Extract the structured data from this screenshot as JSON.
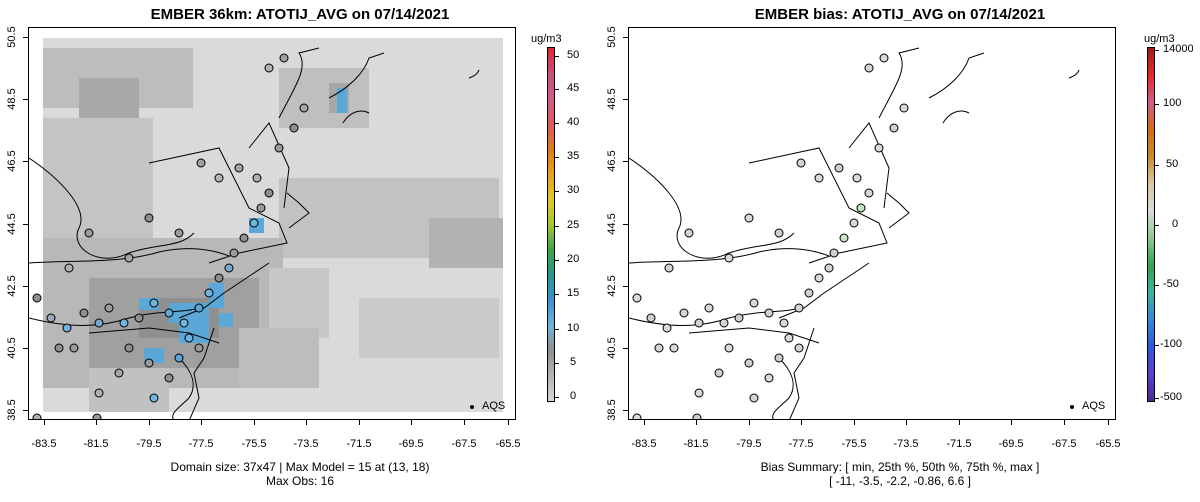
{
  "left": {
    "title": "EMBER 36km: ATOTIJ_AVG on 07/14/2021",
    "footer_line1": "Domain size: 37x47 | Max Model = 15 at (13, 18)",
    "footer_line2": "Max Obs: 16",
    "unit": "ug/m3",
    "colorbar_ticks": [
      "50",
      "45",
      "40",
      "35",
      "30",
      "25",
      "20",
      "15",
      "10",
      "5",
      "0"
    ],
    "legend": "AQS"
  },
  "right": {
    "title": "EMBER bias: ATOTIJ_AVG on 07/14/2021",
    "footer_line1": "Bias Summary: [ min, 25th %, 50th %, 75th %, max ]",
    "footer_line2": "[ -11,   -3.5,   -2.2,   -0.86,   6.6 ]",
    "unit": "ug/m3",
    "colorbar_ticks": [
      "14000",
      "100",
      "50",
      "0",
      "-50",
      "-100",
      "-500"
    ],
    "legend": "AQS"
  },
  "y_ticks": [
    "50.5",
    "48.5",
    "46.5",
    "44.5",
    "42.5",
    "40.5",
    "38.5"
  ],
  "x_ticks": [
    "-83.5",
    "-81.5",
    "-79.5",
    "-77.5",
    "-75.5",
    "-73.5",
    "-71.5",
    "-69.5",
    "-67.5",
    "-65.5"
  ],
  "colors": {
    "left_scale": [
      "#d7d7d7",
      "#b3b3b3",
      "#8f8f8f",
      "#6fb4dc",
      "#3b90d0",
      "#219a8c",
      "#3ea54a",
      "#a4c634",
      "#e3c82a",
      "#e7a023",
      "#df7a1f",
      "#d95b5b",
      "#d45a8c",
      "#c64f7a",
      "#e32431"
    ],
    "right_scale": [
      "#4a2a8f",
      "#5b3fd1",
      "#2f58d8",
      "#2f8cd6",
      "#3db0a0",
      "#2ea54b",
      "#8fc98f",
      "#d9d9d9",
      "#d8c7a0",
      "#c88c2a",
      "#d46a12",
      "#cf5d8c",
      "#e02a27",
      "#a11b1b"
    ]
  }
}
